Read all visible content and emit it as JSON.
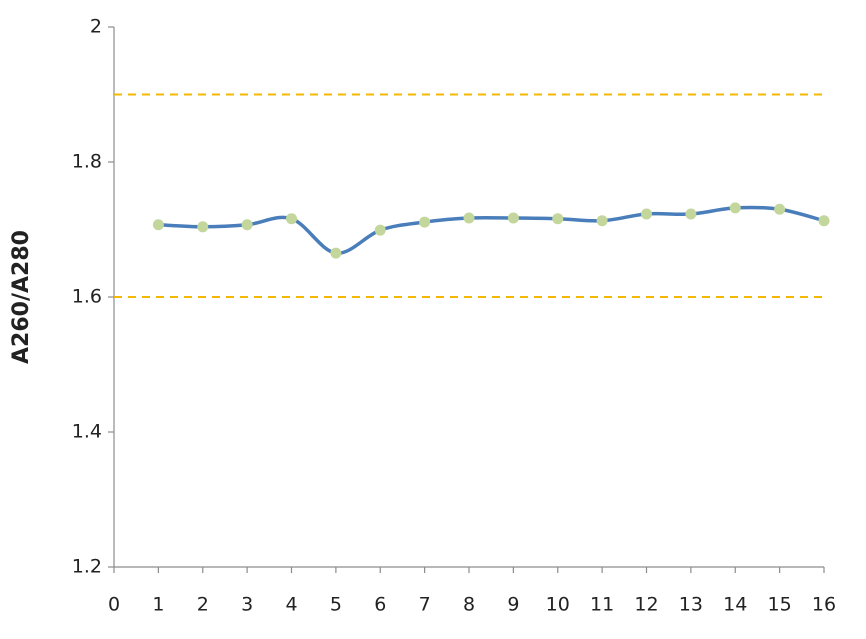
{
  "chart_data": {
    "type": "line",
    "y_label": "A260/A280",
    "x": [
      1,
      2,
      3,
      4,
      5,
      6,
      7,
      8,
      9,
      10,
      11,
      12,
      13,
      14,
      15,
      16
    ],
    "series": [
      {
        "color": "#4a7ebb",
        "marker_color": "#c3d69b",
        "values": [
          1.707,
          1.704,
          1.707,
          1.716,
          1.665,
          1.699,
          1.711,
          1.717,
          1.717,
          1.716,
          1.713,
          1.723,
          1.723,
          1.732,
          1.73,
          1.713
        ]
      }
    ],
    "reference_lines": [
      1.9,
      1.6
    ],
    "reference_color": "#f5b800",
    "xlim": [
      0,
      16
    ],
    "xticks": [
      0,
      1,
      2,
      3,
      4,
      5,
      6,
      7,
      8,
      9,
      10,
      11,
      12,
      13,
      14,
      15,
      16
    ],
    "ylim": [
      1.2,
      2
    ],
    "yticks": [
      1.2,
      1.4,
      1.6,
      1.8,
      2
    ]
  }
}
